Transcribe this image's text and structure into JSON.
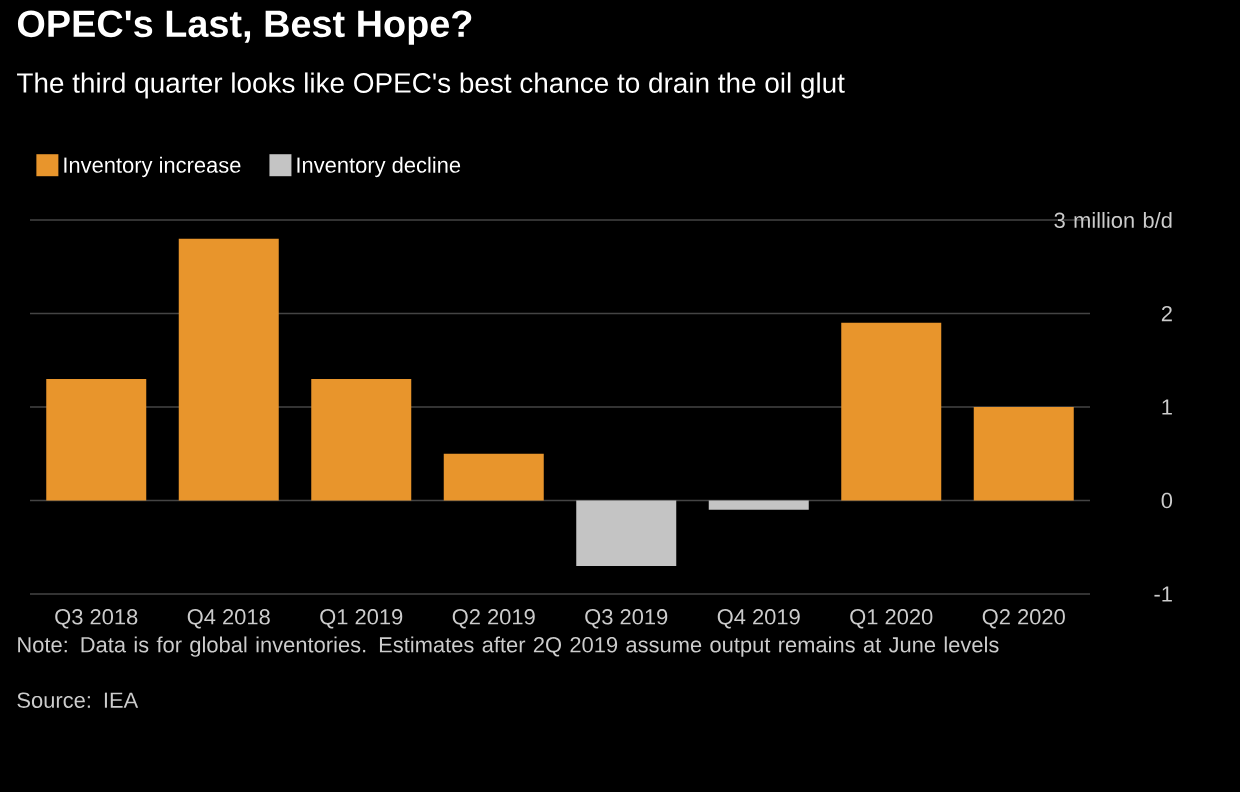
{
  "chart_data": {
    "type": "bar",
    "title": "OPEC's Last, Best Hope?",
    "subtitle": "The third quarter looks like OPEC's best chance to drain the oil glut",
    "categories": [
      "Q3 2018",
      "Q4 2018",
      "Q1 2019",
      "Q2 2019",
      "Q3 2019",
      "Q4 2019",
      "Q1 2020",
      "Q2 2020"
    ],
    "series": [
      {
        "name": "Inventory increase",
        "color": "#e8952c",
        "values": [
          1.3,
          2.8,
          1.3,
          0.5,
          null,
          null,
          1.9,
          1.0
        ]
      },
      {
        "name": "Inventory decline",
        "color": "#c4c4c4",
        "values": [
          null,
          null,
          null,
          null,
          -0.7,
          -0.1,
          null,
          null
        ]
      }
    ],
    "ylim": [
      -1,
      3
    ],
    "yticks": [
      -1,
      0,
      1,
      2,
      {
        "value": 3,
        "label": "3 million b/d"
      }
    ],
    "grid": "y",
    "legend": "top left",
    "annotations": [
      "Note: Data is for global inventories. Estimates after 2Q 2019 assume output remains at June levels",
      "Source: IEA"
    ]
  }
}
